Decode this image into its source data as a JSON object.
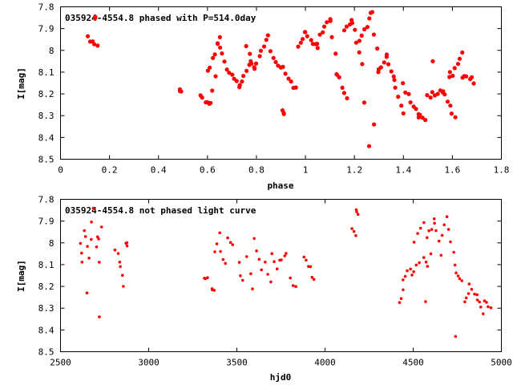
{
  "point_color": "#ff0000",
  "chart_data": [
    {
      "type": "scatter",
      "title": "035924-4554.8 phased with P=514.0day",
      "xlabel": "phase",
      "ylabel": "I[mag]",
      "xlim": [
        0,
        1.8
      ],
      "ylim": [
        7.8,
        8.5
      ],
      "y_inverted": true,
      "grid": false,
      "x_ticks": [
        "0",
        "0.2",
        "0.4",
        "0.6",
        "0.8",
        "1",
        "1.2",
        "1.4",
        "1.6",
        "1.8"
      ],
      "y_ticks": [
        "7.8",
        "7.9",
        "8",
        "8.1",
        "8.2",
        "8.3",
        "8.4",
        "8.5"
      ],
      "segments": [
        [
          0.11,
          7.94,
          0.15,
          7.97
        ],
        [
          0.14,
          7.85,
          0.14,
          7.86
        ],
        [
          0.49,
          8.18,
          0.49,
          8.18
        ],
        [
          0.57,
          8.21,
          0.61,
          8.25
        ],
        [
          0.61,
          8.25,
          0.63,
          8.12
        ],
        [
          0.6,
          8.1,
          0.65,
          7.95
        ],
        [
          0.64,
          7.97,
          0.67,
          8.04
        ],
        [
          0.68,
          8.1,
          0.73,
          8.16
        ],
        [
          0.73,
          8.16,
          0.78,
          8.05
        ],
        [
          0.76,
          7.98,
          0.79,
          8.08
        ],
        [
          0.79,
          8.08,
          0.85,
          7.92
        ],
        [
          0.86,
          8.01,
          0.9,
          8.08
        ],
        [
          0.91,
          8.28,
          0.91,
          8.28
        ],
        [
          0.9,
          8.07,
          0.96,
          8.18
        ],
        [
          0.97,
          7.99,
          1.0,
          7.92
        ],
        [
          1.0,
          7.92,
          1.05,
          7.99
        ],
        [
          1.05,
          7.96,
          1.1,
          7.86
        ],
        [
          1.1,
          7.86,
          1.13,
          8.1
        ],
        [
          1.13,
          8.1,
          1.16,
          8.19
        ],
        [
          1.16,
          7.9,
          1.19,
          7.87
        ],
        [
          1.19,
          7.87,
          1.23,
          8.06
        ],
        [
          1.22,
          7.96,
          1.27,
          7.83
        ],
        [
          1.27,
          7.83,
          1.3,
          8.09
        ],
        [
          1.3,
          8.09,
          1.33,
          8.02
        ],
        [
          1.33,
          8.02,
          1.36,
          8.13
        ],
        [
          1.36,
          8.13,
          1.4,
          8.28
        ],
        [
          1.4,
          8.16,
          1.46,
          8.3
        ],
        [
          1.46,
          8.3,
          1.49,
          8.32
        ],
        [
          1.5,
          8.21,
          1.56,
          8.19
        ],
        [
          1.56,
          8.19,
          1.61,
          8.3
        ],
        [
          1.59,
          8.13,
          1.64,
          8.01
        ],
        [
          1.64,
          8.12,
          1.69,
          8.14
        ]
      ],
      "points": [
        [
          1.26,
          8.44
        ],
        [
          1.28,
          8.34
        ],
        [
          1.24,
          8.24
        ],
        [
          1.52,
          8.05
        ],
        [
          1.59,
          8.1
        ],
        [
          1.17,
          8.22
        ]
      ]
    },
    {
      "type": "scatter",
      "title": "035924-4554.8 not phased light curve",
      "xlabel": "hjd0",
      "ylabel": "I[mag]",
      "xlim": [
        2500,
        5000
      ],
      "ylim": [
        7.8,
        8.5
      ],
      "y_inverted": true,
      "grid": false,
      "x_ticks": [
        "2500",
        "3000",
        "3500",
        "4000",
        "4500",
        "5000"
      ],
      "y_ticks": [
        "7.8",
        "7.9",
        "8",
        "8.1",
        "8.2",
        "8.3",
        "8.4",
        "8.5"
      ],
      "segments": [
        [
          2610,
          8.0,
          2620,
          8.08
        ],
        [
          2630,
          7.94,
          2650,
          8.02
        ],
        [
          2660,
          8.07,
          2680,
          7.9
        ],
        [
          2690,
          7.85,
          2720,
          8.1
        ],
        [
          2700,
          8.02,
          2730,
          7.92
        ],
        [
          2810,
          8.04,
          2840,
          8.08
        ],
        [
          2840,
          8.1,
          2860,
          8.21
        ],
        [
          2870,
          8.0,
          2880,
          8.02
        ],
        [
          3320,
          8.17,
          3330,
          8.17
        ],
        [
          3360,
          8.2,
          3370,
          8.22
        ],
        [
          3380,
          8.05,
          3400,
          7.95
        ],
        [
          3410,
          8.04,
          3440,
          8.1
        ],
        [
          3450,
          7.98,
          3480,
          8.02
        ],
        [
          3510,
          8.1,
          3530,
          8.18
        ],
        [
          3560,
          8.07,
          3590,
          8.2
        ],
        [
          3600,
          7.99,
          3640,
          8.12
        ],
        [
          3660,
          8.1,
          3690,
          8.17
        ],
        [
          3700,
          8.05,
          3730,
          8.12
        ],
        [
          3740,
          8.08,
          3780,
          8.05
        ],
        [
          3800,
          8.16,
          3830,
          8.21
        ],
        [
          3880,
          8.06,
          3910,
          8.1
        ],
        [
          3920,
          8.12,
          3940,
          8.18
        ],
        [
          4150,
          7.94,
          4170,
          7.97
        ],
        [
          4180,
          7.85,
          4185,
          7.87
        ],
        [
          4420,
          8.27,
          4440,
          8.22
        ],
        [
          4440,
          8.18,
          4480,
          8.12
        ],
        [
          4490,
          8.14,
          4530,
          8.1
        ],
        [
          4510,
          8.0,
          4560,
          7.9
        ],
        [
          4560,
          8.08,
          4580,
          8.12
        ],
        [
          4580,
          7.98,
          4620,
          7.9
        ],
        [
          4620,
          7.88,
          4660,
          8.05
        ],
        [
          4660,
          7.97,
          4690,
          7.88
        ],
        [
          4700,
          7.95,
          4740,
          8.1
        ],
        [
          4740,
          8.13,
          4780,
          8.17
        ],
        [
          4790,
          8.28,
          4810,
          8.23
        ],
        [
          4820,
          8.18,
          4860,
          8.25
        ],
        [
          4860,
          8.25,
          4900,
          8.33
        ],
        [
          4900,
          8.27,
          4940,
          8.3
        ]
      ],
      "points": [
        [
          2650,
          8.23
        ],
        [
          2720,
          8.34
        ],
        [
          4570,
          8.27
        ],
        [
          4740,
          8.43
        ],
        [
          4600,
          8.05
        ]
      ]
    }
  ]
}
